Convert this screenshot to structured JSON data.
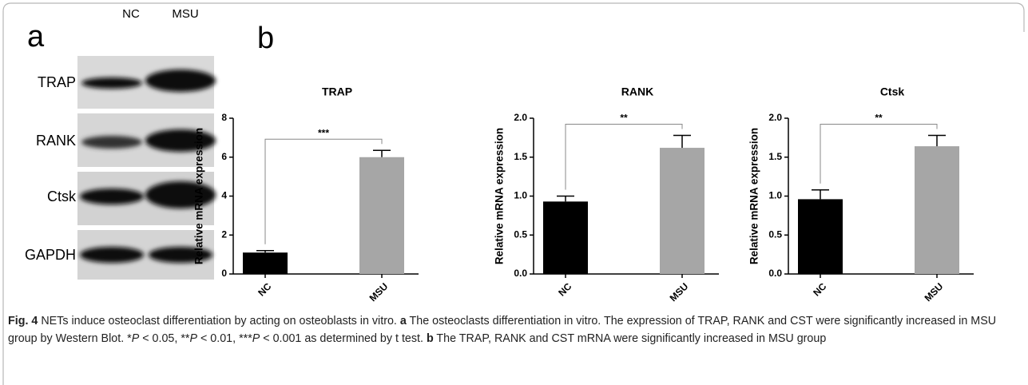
{
  "panel_a": {
    "label": "a",
    "columns": [
      "NC",
      "MSU"
    ],
    "rows": [
      "TRAP",
      "RANK",
      "Ctsk",
      "GAPDH"
    ]
  },
  "panel_b_label": "b",
  "chart_data": [
    {
      "type": "bar",
      "title": "TRAP",
      "y_label": "Relative mRNA expression",
      "categories": [
        "NC",
        "MSU"
      ],
      "values": [
        1.1,
        6.0
      ],
      "errors": [
        0.1,
        0.35
      ],
      "colors": [
        "#000000",
        "#a6a6a6"
      ],
      "ylim": [
        0,
        8
      ],
      "yticks": [
        0,
        2,
        4,
        6,
        8
      ],
      "significance": "***"
    },
    {
      "type": "bar",
      "title": "RANK",
      "y_label": "Relative mRNA expression",
      "categories": [
        "NC",
        "MSU"
      ],
      "values": [
        0.93,
        1.62
      ],
      "errors": [
        0.07,
        0.16
      ],
      "colors": [
        "#000000",
        "#a6a6a6"
      ],
      "ylim": [
        0,
        2
      ],
      "yticks": [
        {
          "value": 0,
          "label": "0.0"
        },
        0.5,
        {
          "value": 1,
          "label": "1.0"
        },
        1.5,
        {
          "value": 2,
          "label": "2.0"
        }
      ],
      "significance": "**"
    },
    {
      "type": "bar",
      "title": "Ctsk",
      "y_label": "Relative mRNA expression",
      "categories": [
        "NC",
        "MSU"
      ],
      "values": [
        0.96,
        1.64
      ],
      "errors": [
        0.12,
        0.14
      ],
      "colors": [
        "#000000",
        "#a6a6a6"
      ],
      "ylim": [
        0,
        2
      ],
      "yticks": [
        {
          "value": 0,
          "label": "0.0"
        },
        0.5,
        {
          "value": 1,
          "label": "1.0"
        },
        1.5,
        {
          "value": 2,
          "label": "2.0"
        }
      ],
      "significance": "**"
    }
  ],
  "caption": {
    "label": "Fig. 4",
    "segments": [
      " NETs induce osteoclast differentiation by acting on osteoblasts in vitro. ",
      "a",
      " The osteoclasts differentiation in vitro. The expression of TRAP, RANK and CST were significantly increased in MSU group by Western Blot. *",
      "P",
      " < 0.05, **",
      "P",
      " < 0.01, ***",
      "P",
      " < 0.001 as determined by t test. ",
      "b",
      " The TRAP, RANK and CST mRNA were significantly increased in MSU group"
    ]
  }
}
